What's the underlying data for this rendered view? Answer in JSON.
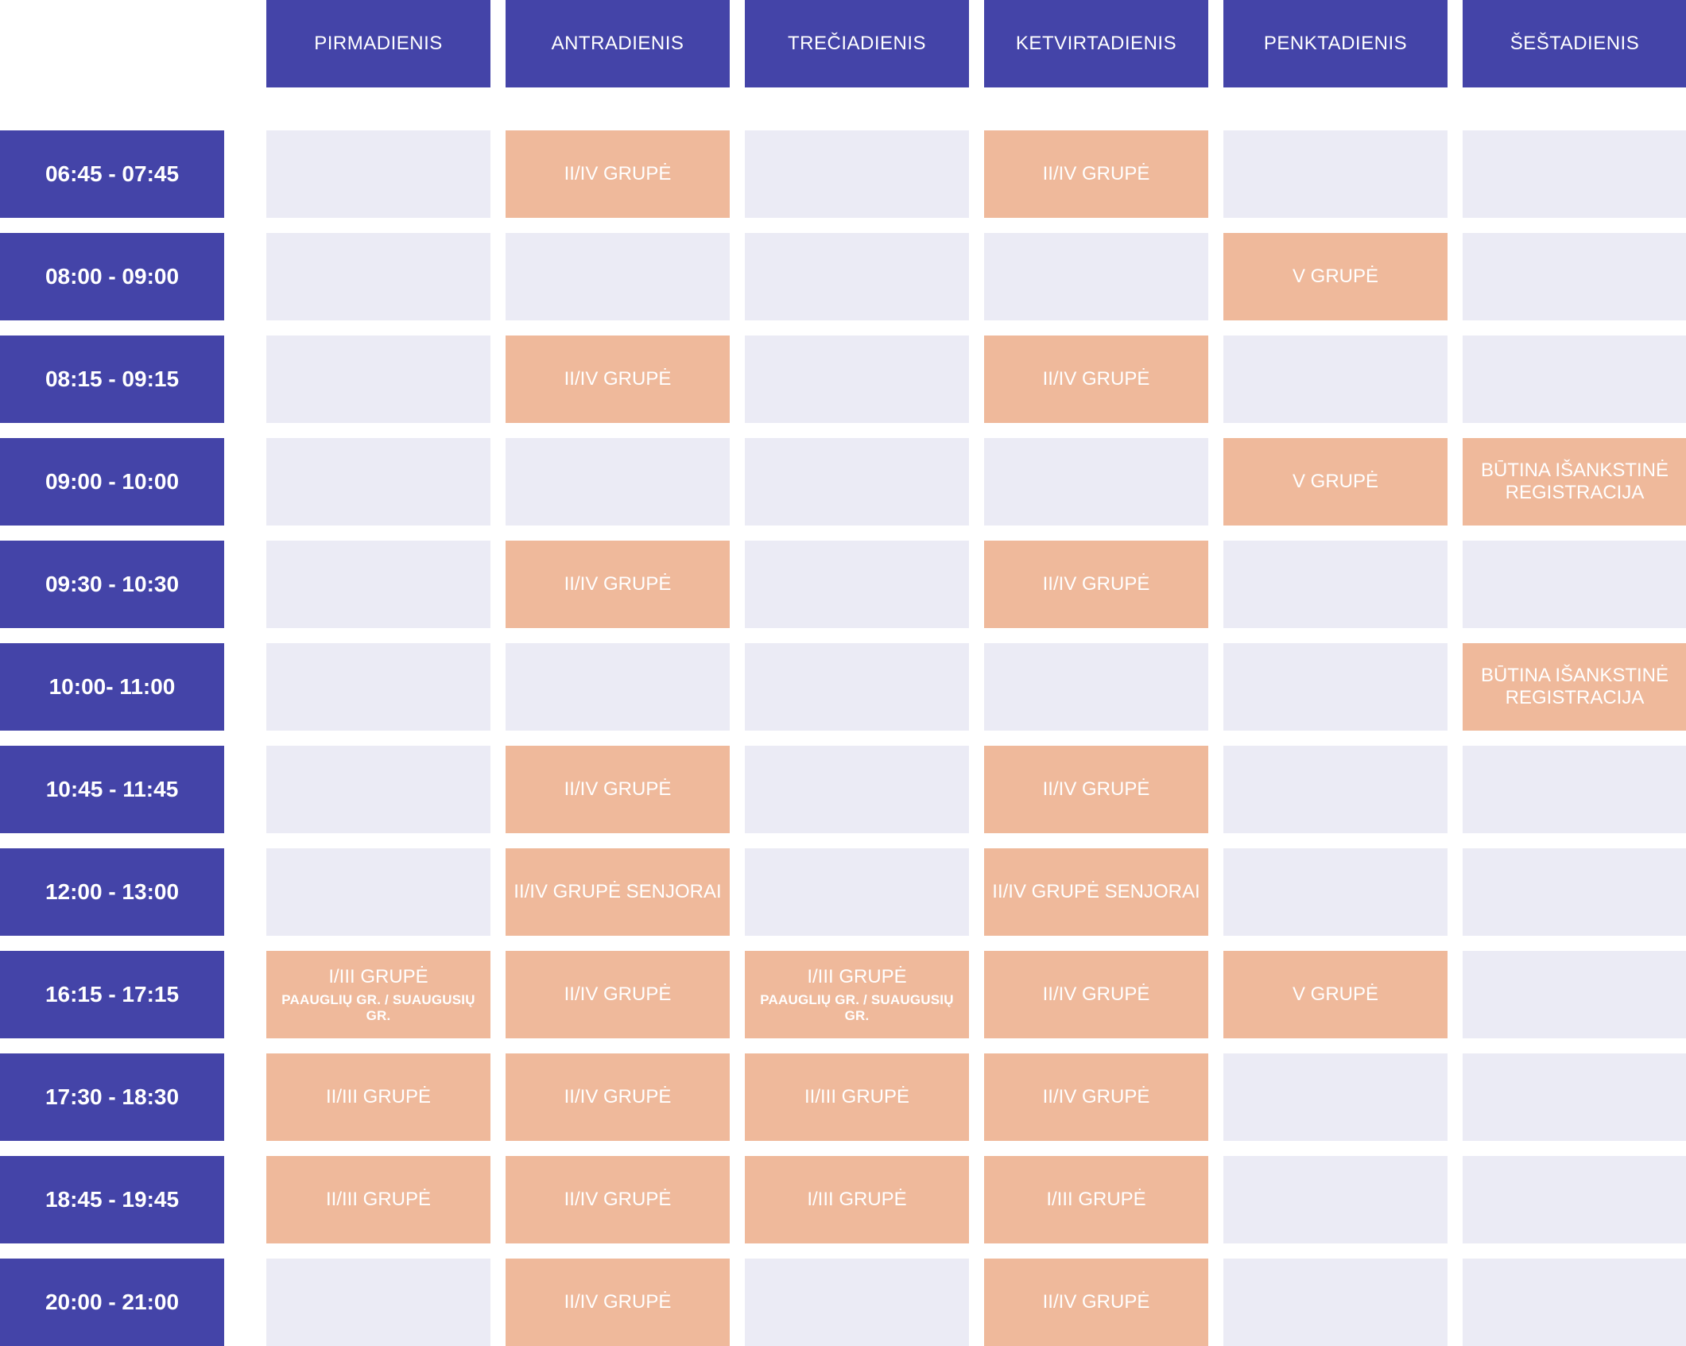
{
  "days": [
    "PIRMADIENIS",
    "ANTRADIENIS",
    "TREČIADIENIS",
    "KETVIRTADIENIS",
    "PENKTADIENIS",
    "ŠEŠTADIENIS"
  ],
  "colors": {
    "header_bg": "#4444a8",
    "empty_cell": "#ebebf5",
    "filled_cell": "#efb99b",
    "text": "#ffffff"
  },
  "rows": [
    {
      "time": "06:45 - 07:45",
      "cells": [
        {
          "label": ""
        },
        {
          "label": "II/IV GRUPĖ"
        },
        {
          "label": ""
        },
        {
          "label": "II/IV GRUPĖ"
        },
        {
          "label": ""
        },
        {
          "label": ""
        }
      ]
    },
    {
      "time": "08:00 - 09:00",
      "cells": [
        {
          "label": ""
        },
        {
          "label": ""
        },
        {
          "label": ""
        },
        {
          "label": ""
        },
        {
          "label": "V GRUPĖ"
        },
        {
          "label": ""
        }
      ]
    },
    {
      "time": "08:15 - 09:15",
      "cells": [
        {
          "label": ""
        },
        {
          "label": "II/IV GRUPĖ"
        },
        {
          "label": ""
        },
        {
          "label": "II/IV GRUPĖ"
        },
        {
          "label": ""
        },
        {
          "label": ""
        }
      ]
    },
    {
      "time": "09:00 - 10:00",
      "cells": [
        {
          "label": ""
        },
        {
          "label": ""
        },
        {
          "label": ""
        },
        {
          "label": ""
        },
        {
          "label": "V GRUPĖ"
        },
        {
          "label": "BŪTINA IŠANKSTINĖ REGISTRACIJA"
        }
      ]
    },
    {
      "time": "09:30 - 10:30",
      "cells": [
        {
          "label": ""
        },
        {
          "label": "II/IV GRUPĖ"
        },
        {
          "label": ""
        },
        {
          "label": "II/IV GRUPĖ"
        },
        {
          "label": ""
        },
        {
          "label": ""
        }
      ]
    },
    {
      "time": "10:00- 11:00",
      "cells": [
        {
          "label": ""
        },
        {
          "label": ""
        },
        {
          "label": ""
        },
        {
          "label": ""
        },
        {
          "label": ""
        },
        {
          "label": "BŪTINA IŠANKSTINĖ REGISTRACIJA"
        }
      ]
    },
    {
      "time": "10:45 - 11:45",
      "cells": [
        {
          "label": ""
        },
        {
          "label": "II/IV GRUPĖ"
        },
        {
          "label": ""
        },
        {
          "label": "II/IV GRUPĖ"
        },
        {
          "label": ""
        },
        {
          "label": ""
        }
      ]
    },
    {
      "time": "12:00 - 13:00",
      "cells": [
        {
          "label": ""
        },
        {
          "label": "II/IV GRUPĖ SENJORAI"
        },
        {
          "label": ""
        },
        {
          "label": "II/IV GRUPĖ SENJORAI"
        },
        {
          "label": ""
        },
        {
          "label": ""
        }
      ]
    },
    {
      "time": "16:15 - 17:15",
      "cells": [
        {
          "label": "I/III GRUPĖ",
          "sub": "PAAUGLIŲ GR. / SUAUGUSIŲ GR."
        },
        {
          "label": "II/IV GRUPĖ"
        },
        {
          "label": "I/III GRUPĖ",
          "sub": "PAAUGLIŲ GR. / SUAUGUSIŲ GR."
        },
        {
          "label": "II/IV GRUPĖ"
        },
        {
          "label": "V GRUPĖ"
        },
        {
          "label": ""
        }
      ]
    },
    {
      "time": "17:30 - 18:30",
      "cells": [
        {
          "label": "II/III GRUPĖ"
        },
        {
          "label": "II/IV GRUPĖ"
        },
        {
          "label": "II/III GRUPĖ"
        },
        {
          "label": "II/IV GRUPĖ"
        },
        {
          "label": ""
        },
        {
          "label": ""
        }
      ]
    },
    {
      "time": "18:45 - 19:45",
      "cells": [
        {
          "label": "II/III GRUPĖ"
        },
        {
          "label": "II/IV GRUPĖ"
        },
        {
          "label": "I/III GRUPĖ"
        },
        {
          "label": "I/III GRUPĖ"
        },
        {
          "label": ""
        },
        {
          "label": ""
        }
      ]
    },
    {
      "time": "20:00 - 21:00",
      "cells": [
        {
          "label": ""
        },
        {
          "label": "II/IV GRUPĖ"
        },
        {
          "label": ""
        },
        {
          "label": "II/IV GRUPĖ"
        },
        {
          "label": ""
        },
        {
          "label": ""
        }
      ]
    }
  ]
}
